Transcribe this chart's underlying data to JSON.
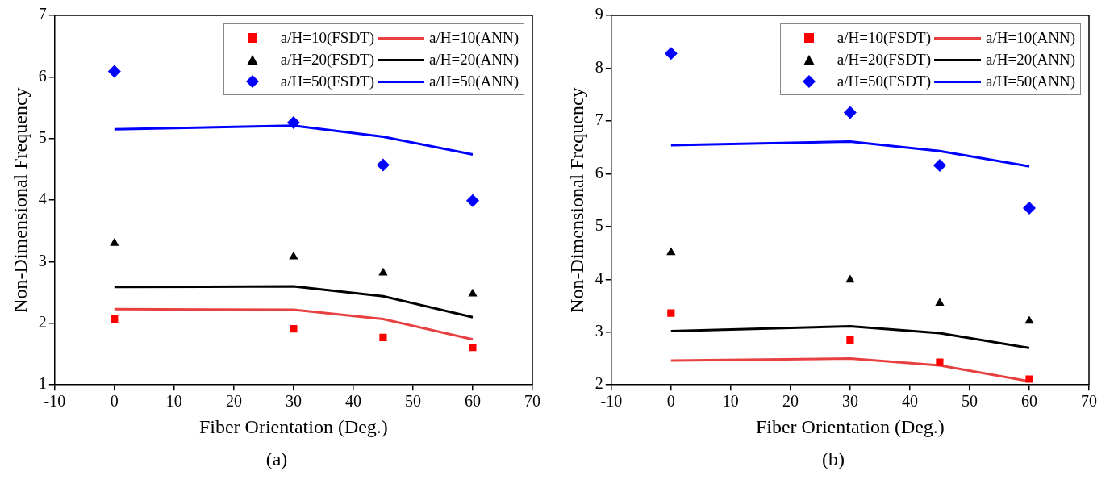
{
  "chart_data": [
    {
      "type": "line",
      "xlabel": "Fiber Orientation (Deg.)",
      "ylabel": "Non-Dimensional Frequency",
      "annotations": [
        "(a)"
      ],
      "x": [
        0,
        30,
        45,
        60
      ],
      "xlim": [
        -10,
        70
      ],
      "xticks": [
        -10,
        0,
        10,
        20,
        30,
        40,
        50,
        60,
        70
      ],
      "ylim": [
        1,
        7
      ],
      "yticks": [
        1,
        2,
        3,
        4,
        5,
        6,
        7
      ],
      "grid": false,
      "legend": "top right",
      "series": [
        {
          "name": "a/H=10(FSDT)",
          "type": "scatter",
          "marker": "square",
          "color": "#ff0000",
          "values": [
            2.07,
            1.91,
            1.77,
            1.61
          ]
        },
        {
          "name": "a/H=10(ANN)",
          "type": "line",
          "color": "#e84040",
          "values": [
            2.23,
            2.22,
            2.07,
            1.74
          ]
        },
        {
          "name": "a/H=20(FSDT)",
          "type": "scatter",
          "marker": "triangle",
          "color": "#000000",
          "values": [
            3.3,
            3.08,
            2.82,
            2.48
          ]
        },
        {
          "name": "a/H=20(ANN)",
          "type": "line",
          "color": "#000000",
          "values": [
            2.59,
            2.6,
            2.44,
            2.1
          ]
        },
        {
          "name": "a/H=50(FSDT)",
          "type": "scatter",
          "marker": "diamond",
          "color": "#0000ff",
          "values": [
            6.09,
            5.26,
            4.57,
            3.99
          ]
        },
        {
          "name": "a/H=50(ANN)",
          "type": "line",
          "color": "#0000ff",
          "values": [
            5.15,
            5.21,
            5.03,
            4.74
          ]
        }
      ]
    },
    {
      "type": "line",
      "xlabel": "Fiber Orientation (Deg.)",
      "ylabel": "Non-Dimensional Frequency",
      "annotations": [
        "(b)"
      ],
      "x": [
        0,
        30,
        45,
        60
      ],
      "xlim": [
        -10,
        70
      ],
      "xticks": [
        -10,
        0,
        10,
        20,
        30,
        40,
        50,
        60,
        70
      ],
      "ylim": [
        2,
        9
      ],
      "yticks": [
        2,
        3,
        4,
        5,
        6,
        7,
        8,
        9
      ],
      "grid": false,
      "legend": "top right",
      "series": [
        {
          "name": "a/H=10(FSDT)",
          "type": "scatter",
          "marker": "square",
          "color": "#ff0000",
          "values": [
            3.36,
            2.85,
            2.43,
            2.11
          ]
        },
        {
          "name": "a/H=10(ANN)",
          "type": "line",
          "color": "#e84040",
          "values": [
            2.46,
            2.5,
            2.37,
            2.07
          ]
        },
        {
          "name": "a/H=20(FSDT)",
          "type": "scatter",
          "marker": "triangle",
          "color": "#000000",
          "values": [
            4.51,
            3.99,
            3.55,
            3.21
          ]
        },
        {
          "name": "a/H=20(ANN)",
          "type": "line",
          "color": "#000000",
          "values": [
            3.02,
            3.11,
            2.98,
            2.7
          ]
        },
        {
          "name": "a/H=50(FSDT)",
          "type": "scatter",
          "marker": "diamond",
          "color": "#0000ff",
          "values": [
            8.28,
            7.16,
            6.16,
            5.35
          ]
        },
        {
          "name": "a/H=50(ANN)",
          "type": "line",
          "color": "#0000ff",
          "values": [
            6.54,
            6.61,
            6.43,
            6.14
          ]
        }
      ]
    }
  ]
}
